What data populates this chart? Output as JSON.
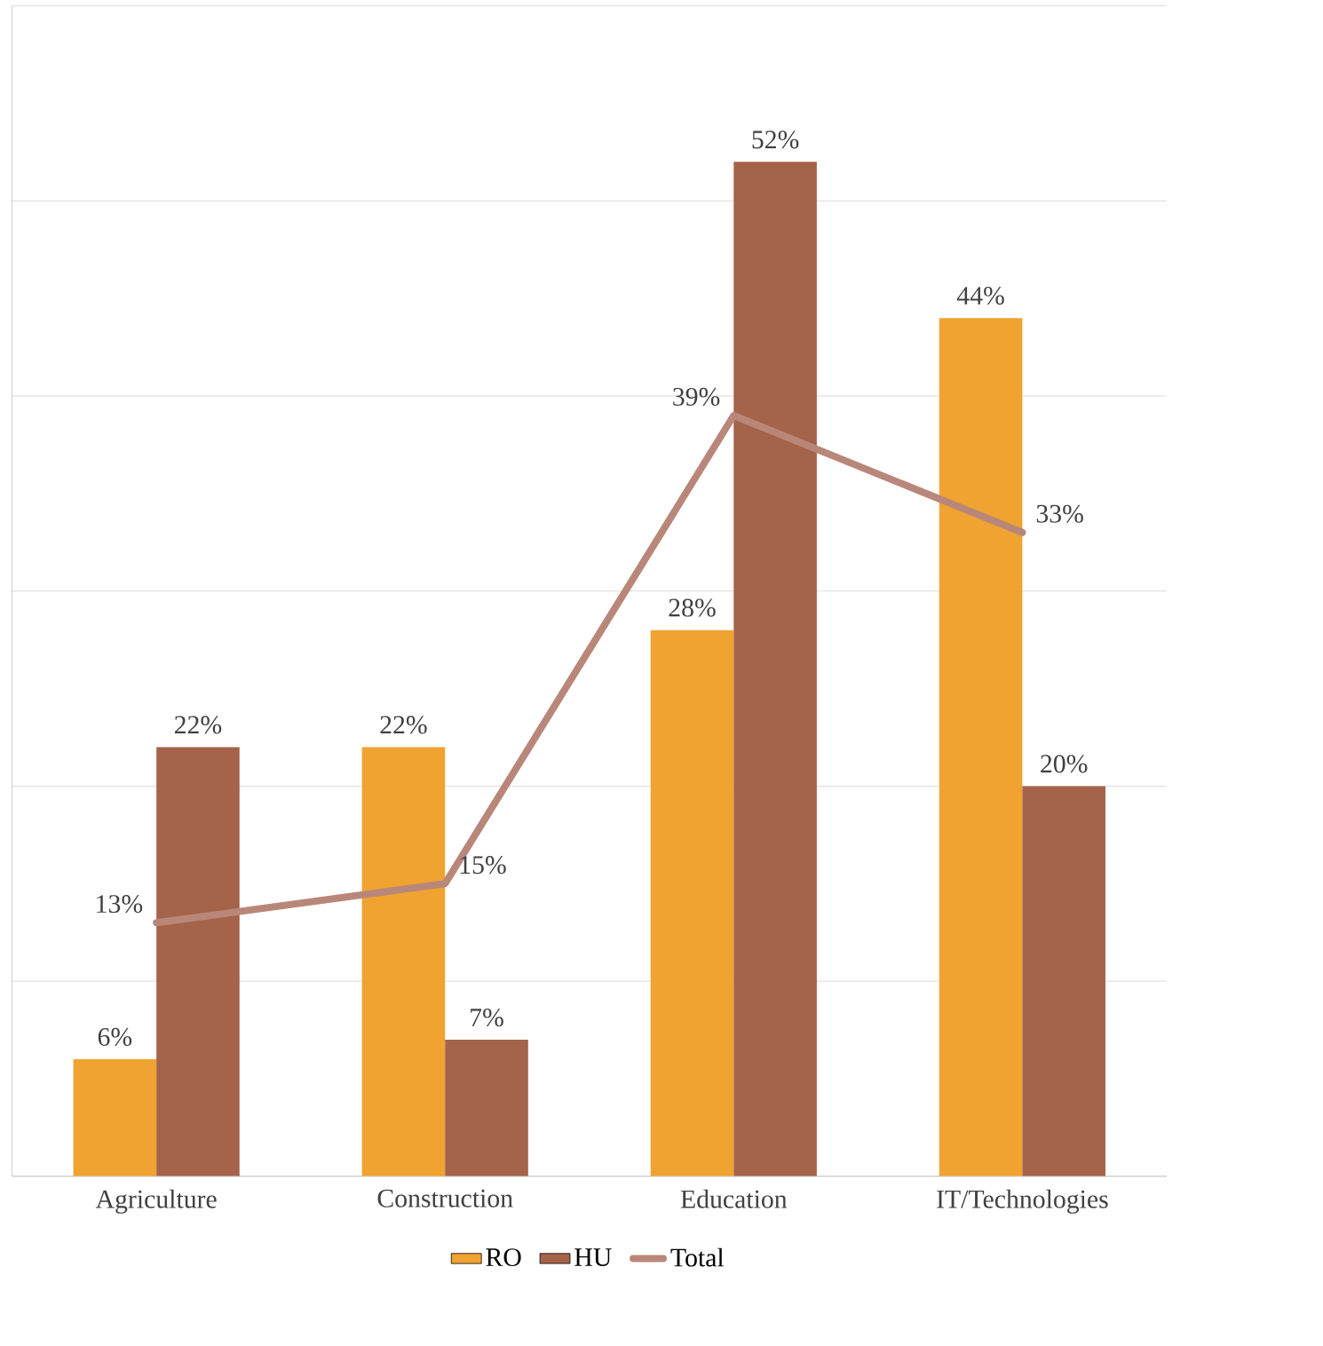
{
  "chart_data": {
    "type": "bar",
    "categories": [
      "Agriculture",
      "Construction",
      "Education",
      "IT/Technologies"
    ],
    "series": [
      {
        "name": "RO",
        "color": "#f0a330",
        "values": [
          6,
          22,
          28,
          44
        ],
        "value_labels": [
          "6%",
          "22%",
          "28%",
          "44%"
        ]
      },
      {
        "name": "HU",
        "color": "#a5634a",
        "values": [
          22,
          7,
          52,
          20
        ],
        "value_labels": [
          "22%",
          "7%",
          "52%",
          "20%"
        ]
      },
      {
        "name": "Total",
        "type": "line",
        "color": "#b9877a",
        "values": [
          13,
          15,
          39,
          33
        ],
        "value_labels": [
          "13%",
          "15%",
          "39%",
          "33%"
        ]
      }
    ],
    "ylim": [
      0,
      60
    ],
    "yticks": [
      {
        "value": 0,
        "label": null
      },
      {
        "value": 10,
        "label": null
      },
      {
        "value": 20,
        "label": null
      },
      {
        "value": 30,
        "label": null
      },
      {
        "value": 40,
        "label": null
      },
      {
        "value": 50,
        "label": null
      },
      {
        "value": 60,
        "label": null
      }
    ],
    "tick_labels": "x",
    "grid": "y",
    "legend": "bottom",
    "marker": "none"
  }
}
